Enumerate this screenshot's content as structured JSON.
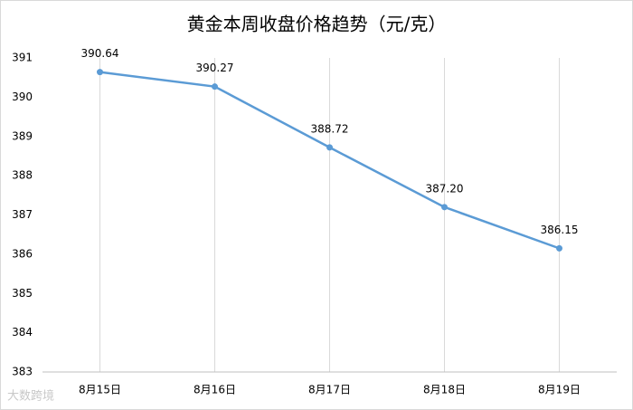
{
  "chart_data": {
    "type": "line",
    "title": "黄金本周收盘价格趋势（元/克）",
    "categories": [
      "8月15日",
      "8月16日",
      "8月17日",
      "8月18日",
      "8月19日"
    ],
    "series": [
      {
        "color": "#5b9bd5",
        "values": [
          390.64,
          390.27,
          388.72,
          387.2,
          386.15
        ],
        "value_labels": [
          "390.64",
          "390.27",
          "388.72",
          "387.20",
          "386.15"
        ]
      }
    ],
    "ylim": [
      383,
      391
    ],
    "yticks": [
      383,
      384,
      385,
      386,
      387,
      388,
      389,
      390,
      391
    ],
    "vertical_grid": true,
    "watermark": "大数跨境"
  }
}
